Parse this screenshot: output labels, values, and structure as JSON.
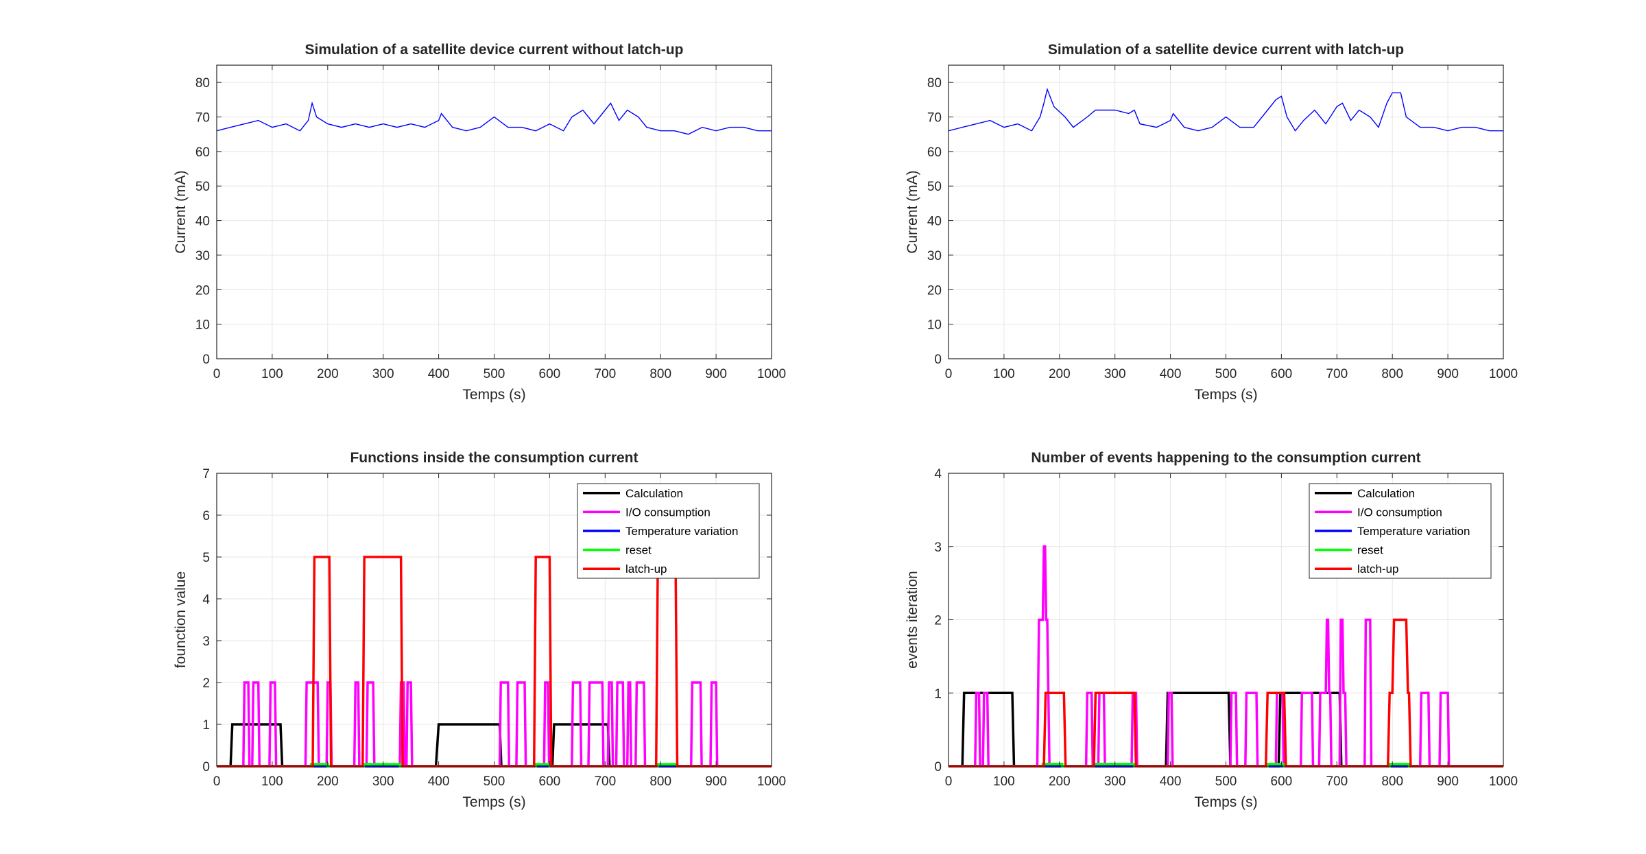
{
  "colors": {
    "Calculation": "#000000",
    "I/O consumption": "#ff00ff",
    "Temperature variation": "#0000ff",
    "reset": "#00ff00",
    "latch-up": "#ff0000",
    "current": "#0000ff",
    "grid": "#e6e6e6",
    "axis": "#262626"
  },
  "chart_data": [
    {
      "id": "p1",
      "type": "line",
      "title": "Simulation of a satellite device current without latch-up",
      "xlabel": "Temps (s)",
      "ylabel": "Current (mA)",
      "xlim": [
        0,
        1000
      ],
      "ylim": [
        0,
        85
      ],
      "xticks": [
        0,
        100,
        200,
        300,
        400,
        500,
        600,
        700,
        800,
        900,
        1000
      ],
      "yticks": [
        0,
        10,
        20,
        30,
        40,
        50,
        60,
        70,
        80
      ],
      "grid": true,
      "legend": null,
      "series": [
        {
          "color": "current",
          "x": [
            0,
            25,
            50,
            75,
            100,
            125,
            150,
            165,
            172,
            180,
            200,
            225,
            250,
            275,
            300,
            325,
            350,
            375,
            400,
            405,
            425,
            450,
            475,
            500,
            525,
            550,
            575,
            600,
            625,
            640,
            660,
            680,
            700,
            710,
            725,
            740,
            760,
            775,
            800,
            825,
            850,
            875,
            900,
            925,
            950,
            975,
            1000
          ],
          "y": [
            66,
            67,
            68,
            69,
            67,
            68,
            66,
            69,
            74,
            70,
            68,
            67,
            68,
            67,
            68,
            67,
            68,
            67,
            69,
            71,
            67,
            66,
            67,
            70,
            67,
            67,
            66,
            68,
            66,
            70,
            72,
            68,
            72,
            74,
            69,
            72,
            70,
            67,
            66,
            66,
            65,
            67,
            66,
            67,
            67,
            66,
            66
          ]
        }
      ]
    },
    {
      "id": "p2",
      "type": "line",
      "title": "Simulation of a satellite device current with latch-up",
      "xlabel": "Temps (s)",
      "ylabel": "Current (mA)",
      "xlim": [
        0,
        1000
      ],
      "ylim": [
        0,
        85
      ],
      "xticks": [
        0,
        100,
        200,
        300,
        400,
        500,
        600,
        700,
        800,
        900,
        1000
      ],
      "yticks": [
        0,
        10,
        20,
        30,
        40,
        50,
        60,
        70,
        80
      ],
      "grid": true,
      "legend": null,
      "series": [
        {
          "color": "current",
          "x": [
            0,
            25,
            50,
            75,
            100,
            125,
            150,
            165,
            172,
            178,
            190,
            210,
            225,
            250,
            265,
            280,
            300,
            325,
            335,
            345,
            375,
            400,
            405,
            425,
            450,
            475,
            500,
            525,
            550,
            575,
            590,
            600,
            610,
            625,
            640,
            660,
            680,
            700,
            710,
            725,
            740,
            760,
            775,
            790,
            800,
            815,
            825,
            850,
            875,
            900,
            925,
            950,
            975,
            1000
          ],
          "y": [
            66,
            67,
            68,
            69,
            67,
            68,
            66,
            70,
            74,
            78,
            73,
            70,
            67,
            70,
            72,
            72,
            72,
            71,
            72,
            68,
            67,
            69,
            71,
            67,
            66,
            67,
            70,
            67,
            67,
            72,
            75,
            76,
            70,
            66,
            69,
            72,
            68,
            73,
            74,
            69,
            72,
            70,
            67,
            74,
            77,
            77,
            70,
            67,
            67,
            66,
            67,
            67,
            66,
            66
          ]
        }
      ]
    },
    {
      "id": "p3",
      "type": "line",
      "title": "Functions inside the consumption current",
      "xlabel": "Temps (s)",
      "ylabel": "founction value",
      "xlim": [
        0,
        1000
      ],
      "ylim": [
        0,
        7
      ],
      "xticks": [
        0,
        100,
        200,
        300,
        400,
        500,
        600,
        700,
        800,
        900,
        1000
      ],
      "yticks": [
        0,
        1,
        2,
        3,
        4,
        5,
        6,
        7
      ],
      "grid": true,
      "legend": "top-right",
      "series": [
        {
          "name": "Calculation",
          "color": "Calculation",
          "x": [
            0,
            25,
            28,
            115,
            118,
            395,
            400,
            510,
            513,
            605,
            608,
            705,
            708,
            1000
          ],
          "y": [
            0,
            0,
            1,
            1,
            0,
            0,
            1,
            1,
            0,
            0,
            1,
            1,
            0,
            0
          ]
        },
        {
          "name": "I/O consumption",
          "color": "I/O consumption",
          "x": [
            0,
            48,
            50,
            57,
            59,
            64,
            66,
            75,
            77,
            95,
            97,
            105,
            107,
            160,
            162,
            182,
            184,
            198,
            200,
            205,
            207,
            248,
            250,
            255,
            257,
            270,
            272,
            282,
            284,
            330,
            332,
            337,
            339,
            342,
            344,
            350,
            352,
            510,
            512,
            525,
            527,
            540,
            542,
            555,
            557,
            590,
            592,
            597,
            599,
            640,
            642,
            655,
            657,
            670,
            672,
            695,
            697,
            705,
            707,
            712,
            714,
            720,
            722,
            732,
            734,
            740,
            742,
            745,
            747,
            755,
            757,
            770,
            772,
            855,
            857,
            872,
            874,
            890,
            892,
            900,
            902,
            1000
          ],
          "y": [
            0,
            0,
            2,
            2,
            0,
            0,
            2,
            2,
            0,
            0,
            2,
            2,
            0,
            0,
            2,
            2,
            0,
            0,
            2,
            2,
            0,
            0,
            2,
            2,
            0,
            0,
            2,
            2,
            0,
            0,
            2,
            2,
            0,
            0,
            2,
            2,
            0,
            0,
            2,
            2,
            0,
            0,
            2,
            2,
            0,
            0,
            2,
            2,
            0,
            0,
            2,
            2,
            0,
            0,
            2,
            2,
            0,
            0,
            2,
            2,
            0,
            0,
            2,
            2,
            0,
            0,
            2,
            2,
            0,
            0,
            2,
            2,
            0,
            0,
            2,
            2,
            0,
            0,
            2,
            2,
            0,
            0
          ]
        },
        {
          "name": "Temperature variation",
          "color": "Temperature variation",
          "x": [
            0,
            1000
          ],
          "y": [
            0,
            0
          ]
        },
        {
          "name": "reset",
          "color": "reset",
          "x": [
            0,
            170,
            170,
            200,
            200,
            265,
            265,
            330,
            330,
            575,
            575,
            600,
            600,
            795,
            795,
            830,
            830,
            1000
          ],
          "y": [
            0,
            0,
            0.05,
            0.05,
            0,
            0,
            0.05,
            0.05,
            0,
            0,
            0.05,
            0.05,
            0,
            0,
            0.05,
            0.05,
            0,
            0
          ]
        },
        {
          "name": "latch-up",
          "color": "latch-up",
          "x": [
            0,
            173,
            176,
            203,
            206,
            263,
            266,
            332,
            335,
            572,
            575,
            600,
            603,
            792,
            795,
            827,
            830,
            1000
          ],
          "y": [
            0,
            0,
            5,
            5,
            0,
            0,
            5,
            5,
            0,
            0,
            5,
            5,
            0,
            0,
            5,
            5,
            0,
            0
          ]
        }
      ]
    },
    {
      "id": "p4",
      "type": "line",
      "title": "Number of events happening to the consumption current",
      "xlabel": "Temps (s)",
      "ylabel": "events iteration",
      "xlim": [
        0,
        1000
      ],
      "ylim": [
        0,
        4
      ],
      "xticks": [
        0,
        100,
        200,
        300,
        400,
        500,
        600,
        700,
        800,
        900,
        1000
      ],
      "yticks": [
        0,
        1,
        2,
        3,
        4
      ],
      "grid": true,
      "legend": "top-right",
      "series": [
        {
          "name": "Calculation",
          "color": "Calculation",
          "x": [
            0,
            25,
            28,
            115,
            118,
            392,
            395,
            505,
            508,
            595,
            598,
            705,
            708,
            1000
          ],
          "y": [
            0,
            0,
            1,
            1,
            0,
            0,
            1,
            1,
            0,
            0,
            1,
            1,
            0,
            0
          ]
        },
        {
          "name": "I/O consumption",
          "color": "I/O consumption",
          "x": [
            0,
            48,
            50,
            55,
            57,
            62,
            64,
            70,
            72,
            95,
            97,
            160,
            163,
            170,
            172,
            174,
            176,
            178,
            180,
            182,
            248,
            250,
            258,
            260,
            270,
            272,
            280,
            282,
            330,
            332,
            338,
            340,
            395,
            397,
            402,
            404,
            508,
            510,
            518,
            520,
            535,
            537,
            555,
            557,
            590,
            592,
            602,
            604,
            635,
            637,
            655,
            657,
            668,
            670,
            680,
            682,
            684,
            686,
            688,
            690,
            705,
            707,
            710,
            712,
            715,
            717,
            750,
            752,
            760,
            762,
            850,
            852,
            865,
            867,
            885,
            887,
            900,
            902,
            1000
          ],
          "y": [
            0,
            0,
            1,
            1,
            0,
            0,
            1,
            1,
            0,
            0,
            0,
            0,
            2,
            2,
            3,
            3,
            2,
            2,
            1,
            0,
            0,
            1,
            1,
            0,
            0,
            1,
            1,
            0,
            0,
            1,
            1,
            0,
            0,
            1,
            1,
            0,
            0,
            1,
            1,
            0,
            0,
            1,
            1,
            0,
            0,
            1,
            1,
            0,
            0,
            1,
            1,
            0,
            0,
            1,
            1,
            2,
            2,
            1,
            1,
            0,
            0,
            2,
            2,
            1,
            1,
            0,
            0,
            2,
            2,
            0,
            0,
            1,
            1,
            0,
            0,
            1,
            1,
            0,
            0
          ]
        },
        {
          "name": "Temperature variation",
          "color": "Temperature variation",
          "x": [
            0,
            1000
          ],
          "y": [
            0,
            0
          ]
        },
        {
          "name": "reset",
          "color": "reset",
          "x": [
            0,
            170,
            170,
            205,
            205,
            262,
            262,
            335,
            335,
            575,
            575,
            605,
            605,
            795,
            795,
            830,
            830,
            1000
          ],
          "y": [
            0,
            0,
            0.03,
            0.03,
            0,
            0,
            0.03,
            0.03,
            0,
            0,
            0.03,
            0.03,
            0,
            0,
            0.03,
            0.03,
            0,
            0
          ]
        },
        {
          "name": "latch-up",
          "color": "latch-up",
          "x": [
            0,
            172,
            175,
            208,
            211,
            262,
            265,
            335,
            338,
            572,
            575,
            605,
            608,
            792,
            795,
            800,
            803,
            825,
            828,
            830,
            833,
            1000
          ],
          "y": [
            0,
            0,
            1,
            1,
            0,
            0,
            1,
            1,
            0,
            0,
            1,
            1,
            0,
            0,
            1,
            1,
            2,
            2,
            1,
            1,
            0,
            0
          ]
        }
      ]
    }
  ]
}
